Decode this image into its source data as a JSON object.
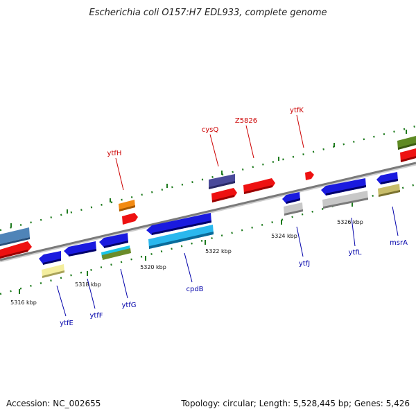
{
  "title": "Escherichia coli O157:H7 EDL933, complete genome",
  "footer": {
    "accession": "Accession: NC_002655",
    "summary": "Topology: circular; Length: 5,528,445 bp; Genes: 5,426"
  },
  "colors": {
    "backbone": "#8a8a8a",
    "forward_gene": "#ee1111",
    "reverse_gene": "#1a1adf",
    "top_label": "#cc0000",
    "bottom_label": "#0000aa",
    "tick": "#1d7a1d"
  },
  "scale_labels": [
    "5316 kbp",
    "5318 kbp",
    "5320 kbp",
    "5322 kbp",
    "5324 kbp",
    "5326 kbp"
  ],
  "genes_top": [
    {
      "name": "ytfH"
    },
    {
      "name": "cysQ"
    },
    {
      "name": "Z5826"
    },
    {
      "name": "ytfK"
    }
  ],
  "genes_bottom": [
    {
      "name": "ytfE"
    },
    {
      "name": "ytfF"
    },
    {
      "name": "ytfG"
    },
    {
      "name": "cpdB"
    },
    {
      "name": "ytfJ"
    },
    {
      "name": "ytfL"
    },
    {
      "name": "msrA"
    }
  ]
}
